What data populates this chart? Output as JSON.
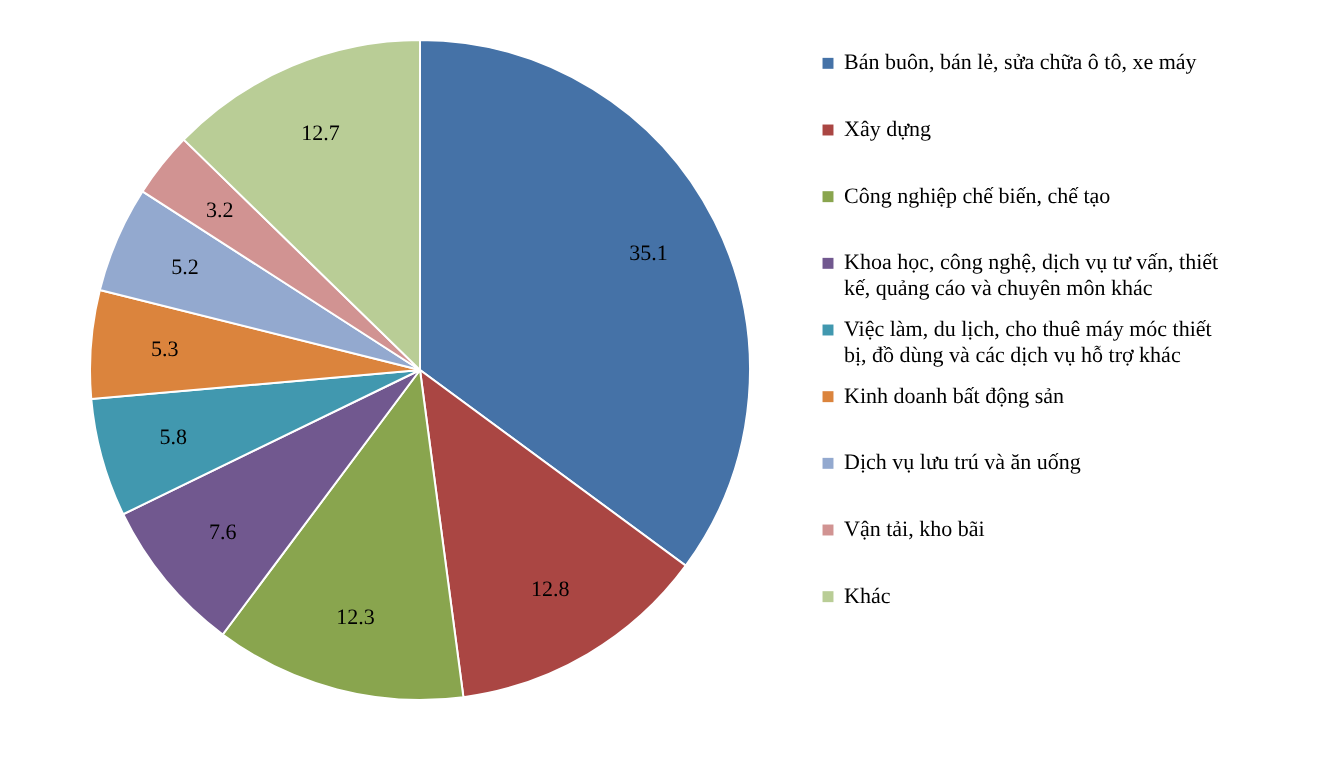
{
  "chart_data": {
    "type": "pie",
    "categories": [
      "Bán buôn,  bán lẻ, sửa chữa ô tô, xe máy",
      "Xây dựng",
      "Công nghiệp  chế biến,  chế tạo",
      "Khoa học, công nghệ, dịch vụ tư vấn, thiết kế, quảng cáo và chuyên môn khác",
      "Việc làm,  du lịch,  cho thuê máy móc thiết bị,  đồ dùng và các dịch vụ hỗ trợ khác",
      "Kinh doanh bất động sản",
      "Dịch vụ lưu trú và ăn uống",
      "Vận tải, kho bãi",
      "Khác"
    ],
    "values": [
      35.1,
      12.8,
      12.3,
      7.6,
      5.8,
      5.3,
      5.2,
      3.2,
      12.7
    ],
    "colors": [
      "#4572a7",
      "#aa4643",
      "#89a54e",
      "#71588f",
      "#4198af",
      "#db843d",
      "#93a9cf",
      "#d19392",
      "#b9cd96"
    ],
    "data_labels": true,
    "legend": "right"
  }
}
